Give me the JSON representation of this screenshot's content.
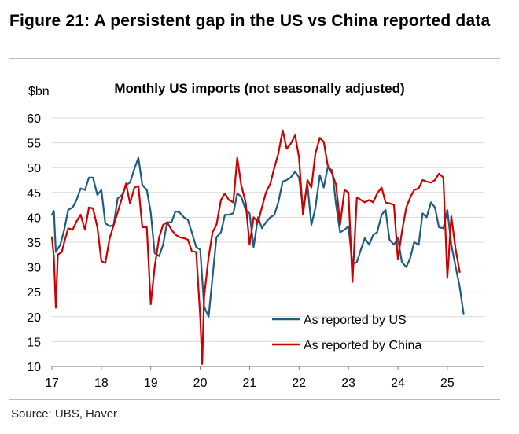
{
  "figure_title": "Figure 21: A persistent gap in the US vs China reported data",
  "source": "Source: UBS, Haver",
  "chart_data": {
    "type": "line",
    "title": "Monthly US imports (not seasonally adjusted)",
    "ylabel": "$bn",
    "ylim": [
      10,
      60
    ],
    "yticks": [
      10,
      15,
      20,
      25,
      30,
      35,
      40,
      45,
      50,
      55,
      60
    ],
    "xlim": [
      2017.0,
      2025.75
    ],
    "xticks": [
      {
        "value": 2017,
        "label": "17"
      },
      {
        "value": 2018,
        "label": "18"
      },
      {
        "value": 2019,
        "label": "19"
      },
      {
        "value": 2020,
        "label": "20"
      },
      {
        "value": 2021,
        "label": "21"
      },
      {
        "value": 2022,
        "label": "22"
      },
      {
        "value": 2023,
        "label": "23"
      },
      {
        "value": 2024,
        "label": "24"
      },
      {
        "value": 2025,
        "label": "25"
      }
    ],
    "grid": "horizontal",
    "legend_position": "bottom-right",
    "series": [
      {
        "name": "As reported by US",
        "color": "#1f5c7e",
        "points": [
          [
            2017.0,
            40.5
          ],
          [
            2017.04,
            41.3
          ],
          [
            2017.08,
            33.0
          ],
          [
            2017.17,
            34.5
          ],
          [
            2017.25,
            37.5
          ],
          [
            2017.33,
            41.5
          ],
          [
            2017.42,
            42.0
          ],
          [
            2017.5,
            43.5
          ],
          [
            2017.58,
            45.8
          ],
          [
            2017.67,
            45.5
          ],
          [
            2017.75,
            48.0
          ],
          [
            2017.83,
            48.0
          ],
          [
            2017.92,
            44.5
          ],
          [
            2018.0,
            45.5
          ],
          [
            2018.08,
            38.8
          ],
          [
            2018.17,
            38.2
          ],
          [
            2018.25,
            38.5
          ],
          [
            2018.33,
            43.8
          ],
          [
            2018.42,
            44.5
          ],
          [
            2018.5,
            46.5
          ],
          [
            2018.58,
            47.0
          ],
          [
            2018.67,
            49.8
          ],
          [
            2018.75,
            52.0
          ],
          [
            2018.83,
            46.5
          ],
          [
            2018.92,
            45.5
          ],
          [
            2019.0,
            41.0
          ],
          [
            2019.08,
            32.8
          ],
          [
            2019.17,
            32.2
          ],
          [
            2019.25,
            34.5
          ],
          [
            2019.33,
            39.0
          ],
          [
            2019.42,
            39.0
          ],
          [
            2019.5,
            41.2
          ],
          [
            2019.58,
            41.0
          ],
          [
            2019.67,
            40.0
          ],
          [
            2019.75,
            39.5
          ],
          [
            2019.83,
            37.0
          ],
          [
            2019.92,
            34.0
          ],
          [
            2020.0,
            33.5
          ],
          [
            2020.08,
            22.0
          ],
          [
            2020.17,
            20.0
          ],
          [
            2020.25,
            28.0
          ],
          [
            2020.33,
            36.0
          ],
          [
            2020.42,
            37.0
          ],
          [
            2020.5,
            40.5
          ],
          [
            2020.58,
            40.5
          ],
          [
            2020.67,
            40.8
          ],
          [
            2020.75,
            44.8
          ],
          [
            2020.83,
            44.2
          ],
          [
            2020.92,
            41.5
          ],
          [
            2021.0,
            40.8
          ],
          [
            2021.08,
            34.0
          ],
          [
            2021.17,
            40.0
          ],
          [
            2021.25,
            37.8
          ],
          [
            2021.33,
            39.0
          ],
          [
            2021.42,
            40.0
          ],
          [
            2021.5,
            40.5
          ],
          [
            2021.58,
            43.0
          ],
          [
            2021.67,
            47.2
          ],
          [
            2021.75,
            47.5
          ],
          [
            2021.83,
            48.0
          ],
          [
            2021.92,
            49.2
          ],
          [
            2022.0,
            48.0
          ],
          [
            2022.08,
            42.0
          ],
          [
            2022.17,
            46.5
          ],
          [
            2022.25,
            38.5
          ],
          [
            2022.33,
            41.8
          ],
          [
            2022.42,
            48.5
          ],
          [
            2022.5,
            46.0
          ],
          [
            2022.58,
            50.0
          ],
          [
            2022.67,
            49.5
          ],
          [
            2022.75,
            42.5
          ],
          [
            2022.83,
            37.0
          ],
          [
            2022.92,
            37.5
          ],
          [
            2023.0,
            38.2
          ],
          [
            2023.08,
            30.5
          ],
          [
            2023.17,
            31.0
          ],
          [
            2023.25,
            33.5
          ],
          [
            2023.33,
            35.8
          ],
          [
            2023.42,
            34.5
          ],
          [
            2023.5,
            36.5
          ],
          [
            2023.58,
            37.0
          ],
          [
            2023.67,
            40.5
          ],
          [
            2023.75,
            41.5
          ],
          [
            2023.83,
            35.5
          ],
          [
            2023.92,
            34.5
          ],
          [
            2024.0,
            35.8
          ],
          [
            2024.08,
            31.0
          ],
          [
            2024.17,
            30.0
          ],
          [
            2024.25,
            31.8
          ],
          [
            2024.33,
            35.0
          ],
          [
            2024.42,
            34.5
          ],
          [
            2024.5,
            40.8
          ],
          [
            2024.58,
            40.0
          ],
          [
            2024.67,
            43.0
          ],
          [
            2024.75,
            42.0
          ],
          [
            2024.83,
            38.0
          ],
          [
            2024.92,
            37.8
          ],
          [
            2025.0,
            41.5
          ],
          [
            2025.08,
            34.5
          ],
          [
            2025.17,
            30.0
          ],
          [
            2025.25,
            26.0
          ],
          [
            2025.33,
            20.5
          ]
        ]
      },
      {
        "name": "As reported by China",
        "color": "#cc0000",
        "points": [
          [
            2017.0,
            36.0
          ],
          [
            2017.04,
            32.0
          ],
          [
            2017.08,
            21.8
          ],
          [
            2017.12,
            32.5
          ],
          [
            2017.2,
            33.0
          ],
          [
            2017.25,
            35.0
          ],
          [
            2017.33,
            37.8
          ],
          [
            2017.42,
            37.5
          ],
          [
            2017.5,
            39.2
          ],
          [
            2017.58,
            40.5
          ],
          [
            2017.67,
            37.5
          ],
          [
            2017.75,
            42.0
          ],
          [
            2017.83,
            41.8
          ],
          [
            2017.92,
            38.0
          ],
          [
            2018.0,
            31.2
          ],
          [
            2018.08,
            30.8
          ],
          [
            2018.17,
            35.8
          ],
          [
            2018.25,
            38.5
          ],
          [
            2018.33,
            41.0
          ],
          [
            2018.42,
            44.0
          ],
          [
            2018.5,
            46.8
          ],
          [
            2018.58,
            42.8
          ],
          [
            2018.67,
            46.0
          ],
          [
            2018.75,
            46.3
          ],
          [
            2018.83,
            38.0
          ],
          [
            2018.92,
            38.0
          ],
          [
            2019.0,
            22.5
          ],
          [
            2019.08,
            30.0
          ],
          [
            2019.17,
            36.0
          ],
          [
            2019.25,
            38.5
          ],
          [
            2019.33,
            39.0
          ],
          [
            2019.42,
            37.5
          ],
          [
            2019.5,
            36.5
          ],
          [
            2019.58,
            36.0
          ],
          [
            2019.67,
            35.8
          ],
          [
            2019.75,
            35.5
          ],
          [
            2019.83,
            33.2
          ],
          [
            2019.92,
            33.0
          ],
          [
            2020.0,
            20.0
          ],
          [
            2020.04,
            10.5
          ],
          [
            2020.08,
            24.0
          ],
          [
            2020.17,
            32.0
          ],
          [
            2020.25,
            37.0
          ],
          [
            2020.33,
            38.5
          ],
          [
            2020.42,
            43.5
          ],
          [
            2020.5,
            44.8
          ],
          [
            2020.58,
            43.5
          ],
          [
            2020.67,
            43.0
          ],
          [
            2020.75,
            52.0
          ],
          [
            2020.83,
            46.5
          ],
          [
            2020.92,
            43.0
          ],
          [
            2021.0,
            34.5
          ],
          [
            2021.08,
            40.0
          ],
          [
            2021.17,
            39.0
          ],
          [
            2021.25,
            42.0
          ],
          [
            2021.33,
            45.0
          ],
          [
            2021.42,
            46.8
          ],
          [
            2021.5,
            50.0
          ],
          [
            2021.58,
            52.8
          ],
          [
            2021.67,
            57.5
          ],
          [
            2021.75,
            53.8
          ],
          [
            2021.83,
            54.8
          ],
          [
            2021.92,
            56.5
          ],
          [
            2022.0,
            52.0
          ],
          [
            2022.08,
            40.5
          ],
          [
            2022.17,
            47.5
          ],
          [
            2022.25,
            46.0
          ],
          [
            2022.33,
            52.8
          ],
          [
            2022.42,
            56.0
          ],
          [
            2022.5,
            55.2
          ],
          [
            2022.58,
            50.5
          ],
          [
            2022.67,
            48.8
          ],
          [
            2022.75,
            46.5
          ],
          [
            2022.83,
            38.5
          ],
          [
            2022.92,
            45.5
          ],
          [
            2023.0,
            45.0
          ],
          [
            2023.08,
            27.0
          ],
          [
            2023.17,
            44.0
          ],
          [
            2023.25,
            43.5
          ],
          [
            2023.33,
            43.0
          ],
          [
            2023.42,
            43.5
          ],
          [
            2023.5,
            43.0
          ],
          [
            2023.58,
            44.8
          ],
          [
            2023.67,
            46.0
          ],
          [
            2023.75,
            43.0
          ],
          [
            2023.83,
            42.8
          ],
          [
            2023.92,
            42.5
          ],
          [
            2024.0,
            31.5
          ],
          [
            2024.08,
            37.0
          ],
          [
            2024.17,
            42.0
          ],
          [
            2024.25,
            44.0
          ],
          [
            2024.33,
            45.5
          ],
          [
            2024.42,
            45.8
          ],
          [
            2024.5,
            47.5
          ],
          [
            2024.58,
            47.2
          ],
          [
            2024.67,
            47.0
          ],
          [
            2024.75,
            47.5
          ],
          [
            2024.83,
            48.8
          ],
          [
            2024.92,
            48.0
          ],
          [
            2025.0,
            27.8
          ],
          [
            2025.08,
            40.2
          ],
          [
            2025.17,
            33.5
          ],
          [
            2025.25,
            29.0
          ]
        ]
      }
    ]
  }
}
